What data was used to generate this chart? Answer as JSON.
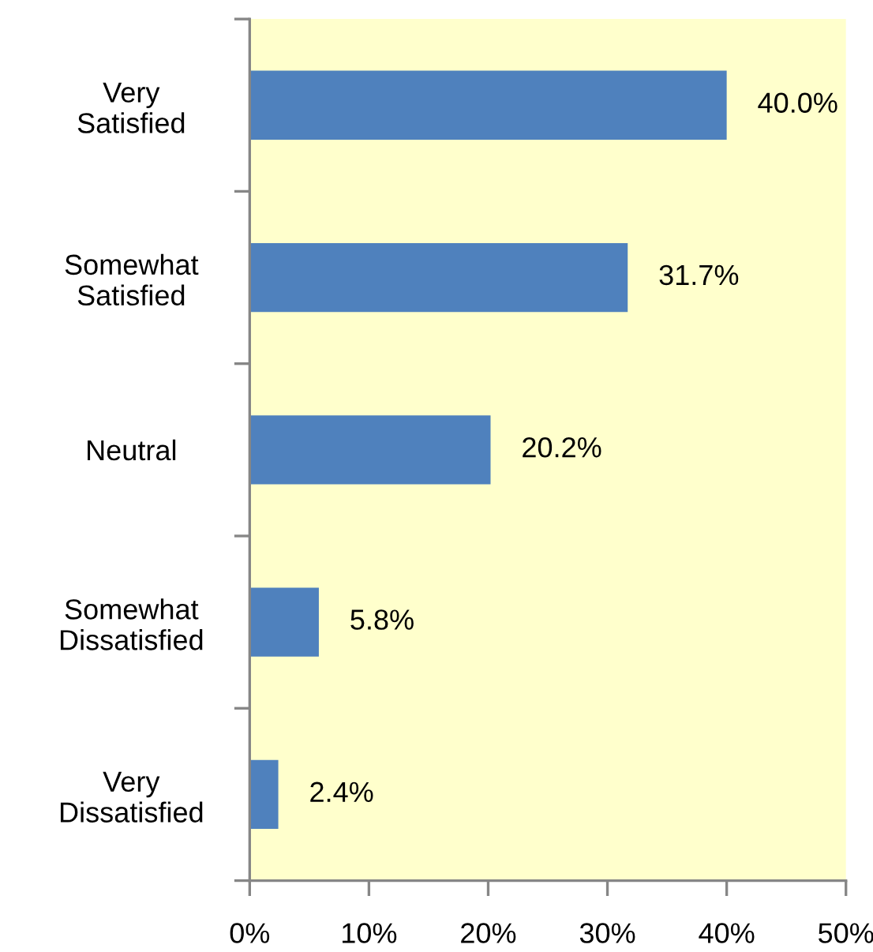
{
  "chart_data": {
    "type": "bar",
    "orientation": "horizontal",
    "categories": [
      "Very\nSatisfied",
      "Somewhat\nSatisfied",
      "Neutral",
      "Somewhat\nDissatisfied",
      "Very\nDissatisfied"
    ],
    "values": [
      40.0,
      31.7,
      20.2,
      5.8,
      2.4
    ],
    "value_labels": [
      "40.0%",
      "31.7%",
      "20.2%",
      "5.8%",
      "2.4%"
    ],
    "color": "#4f81bd",
    "xlim": [
      0,
      50
    ],
    "xticks": [
      {
        "value": 0,
        "label": "0%"
      },
      {
        "value": 10,
        "label": "10%"
      },
      {
        "value": 20,
        "label": "20%"
      },
      {
        "value": 30,
        "label": "30%"
      },
      {
        "value": 40,
        "label": "40%"
      },
      {
        "value": 50,
        "label": "50%"
      }
    ]
  }
}
